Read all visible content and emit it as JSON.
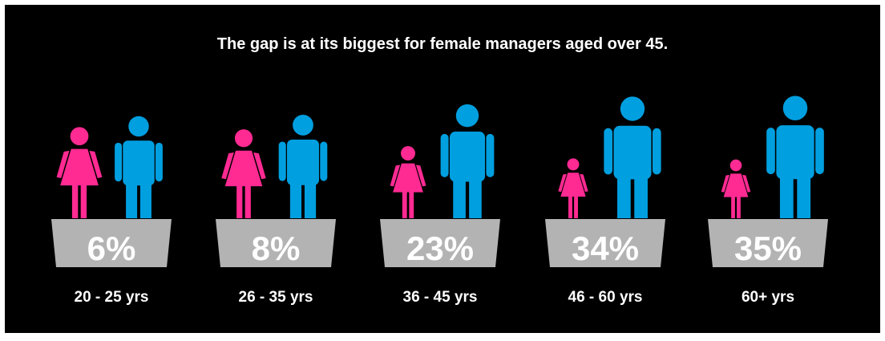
{
  "title": "The gap is at its biggest for female managers aged over 45.",
  "colors": {
    "background": "#000000",
    "female": "#ff2a92",
    "male": "#009fe0",
    "pedestal": "#b3b3b3",
    "text": "#ffffff"
  },
  "icons": {
    "female": "female-figure-icon",
    "male": "male-figure-icon"
  },
  "chart_data": {
    "type": "bar",
    "title": "The gap is at its biggest for female managers aged over 45.",
    "categories": [
      "20 - 25 yrs",
      "26 - 35 yrs",
      "36 - 45 yrs",
      "46 - 60 yrs",
      "60+ yrs"
    ],
    "values": [
      6,
      8,
      23,
      34,
      35
    ],
    "value_labels": [
      "6%",
      "8%",
      "23%",
      "34%",
      "35%"
    ],
    "unit": "%",
    "legend": "none",
    "grid": false
  }
}
